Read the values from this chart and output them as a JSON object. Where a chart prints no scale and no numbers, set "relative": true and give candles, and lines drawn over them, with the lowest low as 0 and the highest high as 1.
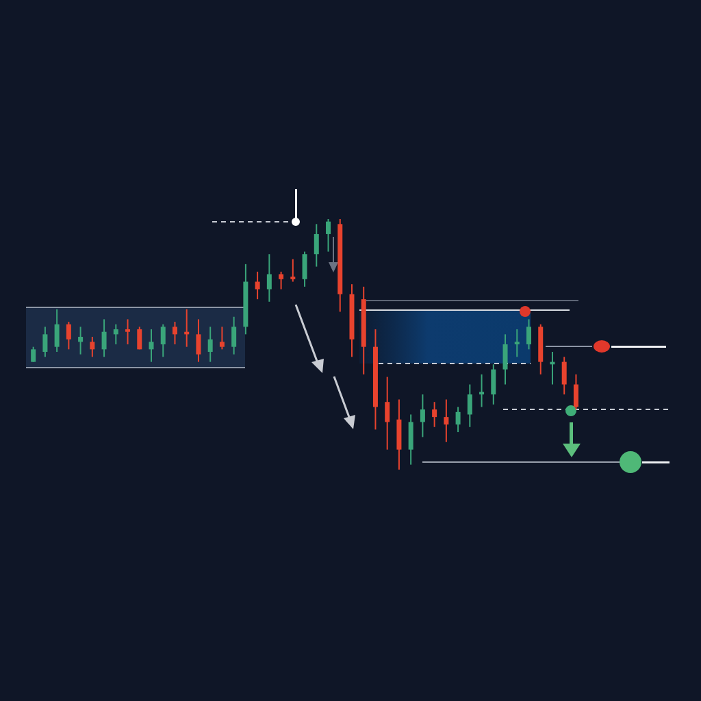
{
  "chart_data": {
    "type": "candlestick",
    "relative": true,
    "categories": [
      null,
      null,
      null,
      null,
      null,
      null,
      null,
      null,
      null,
      null,
      null,
      null,
      null,
      null,
      null,
      null,
      null,
      null,
      null,
      null,
      null,
      null,
      null,
      null,
      null,
      null,
      null,
      null,
      null,
      null,
      null,
      null,
      null,
      null,
      null,
      null,
      null,
      null,
      null,
      null,
      null,
      null,
      null,
      null,
      null,
      null,
      null
    ],
    "ohlc": [
      [
        0.43,
        0.49,
        0.43,
        0.48
      ],
      [
        0.47,
        0.57,
        0.45,
        0.54
      ],
      [
        0.49,
        0.64,
        0.47,
        0.58
      ],
      [
        0.58,
        0.59,
        0.48,
        0.52
      ],
      [
        0.51,
        0.57,
        0.46,
        0.53
      ],
      [
        0.51,
        0.53,
        0.45,
        0.48
      ],
      [
        0.48,
        0.6,
        0.45,
        0.55
      ],
      [
        0.54,
        0.58,
        0.5,
        0.56
      ],
      [
        0.56,
        0.6,
        0.5,
        0.55
      ],
      [
        0.56,
        0.57,
        0.48,
        0.48
      ],
      [
        0.48,
        0.56,
        0.43,
        0.51
      ],
      [
        0.5,
        0.58,
        0.45,
        0.57
      ],
      [
        0.57,
        0.59,
        0.5,
        0.54
      ],
      [
        0.55,
        0.64,
        0.49,
        0.54
      ],
      [
        0.54,
        0.6,
        0.43,
        0.46
      ],
      [
        0.47,
        0.57,
        0.43,
        0.52
      ],
      [
        0.51,
        0.57,
        0.48,
        0.49
      ],
      [
        0.49,
        0.61,
        0.46,
        0.57
      ],
      [
        0.57,
        0.82,
        0.54,
        0.75
      ],
      [
        0.75,
        0.79,
        0.68,
        0.72
      ],
      [
        0.72,
        0.86,
        0.67,
        0.78
      ],
      [
        0.78,
        0.79,
        0.72,
        0.76
      ],
      [
        0.77,
        0.84,
        0.75,
        0.76
      ],
      [
        0.76,
        0.87,
        0.73,
        0.86
      ],
      [
        0.86,
        0.98,
        0.81,
        0.94
      ],
      [
        0.94,
        1,
        0.87,
        0.99
      ],
      [
        0.98,
        1,
        0.63,
        0.7
      ],
      [
        0.7,
        0.74,
        0.45,
        0.52
      ],
      [
        0.68,
        0.73,
        0.38,
        0.49
      ],
      [
        0.49,
        0.56,
        0.16,
        0.25
      ],
      [
        0.27,
        0.37,
        0.08,
        0.19
      ],
      [
        0.2,
        0.28,
        0,
        0.08
      ],
      [
        0.08,
        0.22,
        0.02,
        0.19
      ],
      [
        0.19,
        0.3,
        0.13,
        0.24
      ],
      [
        0.24,
        0.27,
        0.17,
        0.21
      ],
      [
        0.21,
        0.28,
        0.11,
        0.18
      ],
      [
        0.18,
        0.25,
        0.15,
        0.23
      ],
      [
        0.22,
        0.34,
        0.17,
        0.3
      ],
      [
        0.3,
        0.38,
        0.25,
        0.31
      ],
      [
        0.3,
        0.42,
        0.26,
        0.4
      ],
      [
        0.4,
        0.54,
        0.34,
        0.5
      ],
      [
        0.5,
        0.56,
        0.45,
        0.51
      ],
      [
        0.5,
        0.6,
        0.48,
        0.57
      ],
      [
        0.57,
        0.58,
        0.38,
        0.43
      ],
      [
        0.42,
        0.47,
        0.34,
        0.43
      ],
      [
        0.43,
        0.45,
        0.3,
        0.34
      ],
      [
        0.34,
        0.38,
        0.24,
        0.25
      ]
    ],
    "colors": [
      "#3aa57a",
      "#3aa57a",
      "#3aa57a",
      "#e8432e",
      "#3aa57a",
      "#e8432e",
      "#3aa57a",
      "#3aa57a",
      "#e8432e",
      "#e8432e",
      "#3aa57a",
      "#3aa57a",
      "#e8432e",
      "#e8432e",
      "#e8432e",
      "#3aa57a",
      "#e8432e",
      "#3aa57a",
      "#3aa57a",
      "#e8432e",
      "#3aa57a",
      "#e8432e",
      "#e8432e",
      "#3aa57a",
      "#3aa57a",
      "#3aa57a",
      "#e8432e",
      "#e8432e",
      "#e8432e",
      "#e8432e",
      "#e8432e",
      "#e8432e",
      "#3aa57a",
      "#3aa57a",
      "#e8432e",
      "#e8432e",
      "#3aa57a",
      "#3aa57a",
      "#3aa57a",
      "#3aa57a",
      "#3aa57a",
      "#3aa57a",
      "#3aa57a",
      "#e8432e",
      "#3aa57a",
      "#e8432e",
      "#e8432e"
    ]
  }
}
